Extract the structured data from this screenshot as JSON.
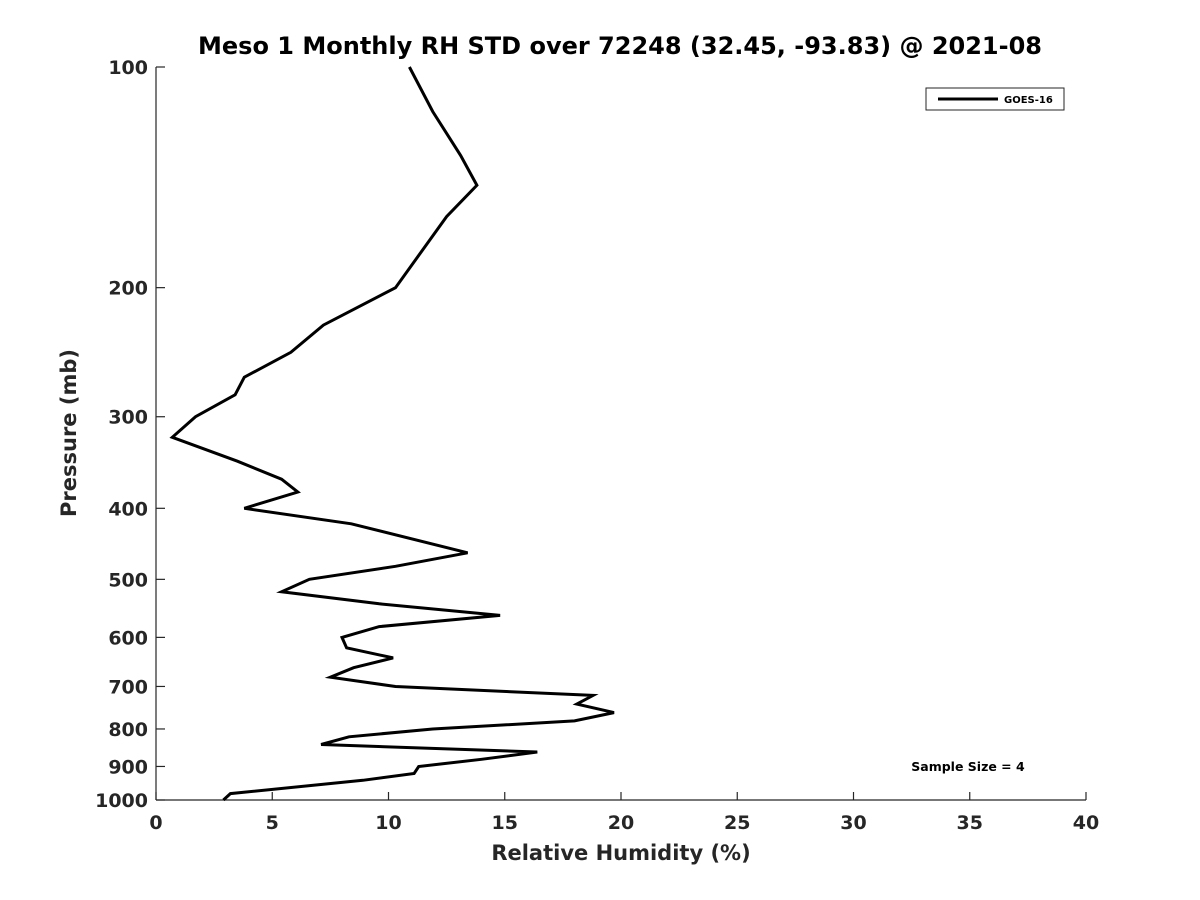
{
  "chart_data": {
    "type": "line",
    "title": "Meso 1 Monthly RH STD over 72248 (32.45, -93.83) @ 2021-08",
    "xlabel": "Relative Humidity (%)",
    "ylabel": "Pressure (mb)",
    "xlim": [
      0,
      40
    ],
    "ylim": [
      100,
      1000
    ],
    "y_scale": "log",
    "y_inverted": true,
    "x_ticks": [
      "0",
      "5",
      "10",
      "15",
      "20",
      "25",
      "30",
      "35",
      "40"
    ],
    "y_ticks": [
      "100",
      "200",
      "300",
      "400",
      "500",
      "600",
      "700",
      "800",
      "900",
      "1000"
    ],
    "grid": false,
    "legend_position": "top-right",
    "series": [
      {
        "name": "GOES-16",
        "color": "#000000",
        "x": [
          10.9,
          11.9,
          13.1,
          13.8,
          12.5,
          10.3,
          7.2,
          5.8,
          3.8,
          3.4,
          1.7,
          0.7,
          3.5,
          5.4,
          6.1,
          3.8,
          8.4,
          13.4,
          10.3,
          6.6,
          5.4,
          9.6,
          14.8,
          9.6,
          8.0,
          8.2,
          10.2,
          8.5,
          7.5,
          10.3,
          18.8,
          18.1,
          19.7,
          18.0,
          11.9,
          8.3,
          7.1,
          16.4,
          14.0,
          11.3,
          11.1,
          8.9,
          3.2,
          2.9
        ],
        "y": [
          100,
          115,
          132,
          145,
          160,
          200,
          225,
          245,
          265,
          280,
          300,
          320,
          345,
          365,
          380,
          400,
          420,
          460,
          480,
          500,
          520,
          540,
          560,
          580,
          600,
          620,
          640,
          660,
          680,
          700,
          720,
          740,
          760,
          780,
          800,
          820,
          840,
          860,
          880,
          900,
          920,
          940,
          980,
          1000
        ]
      }
    ],
    "annotations": [
      {
        "text": "Sample Size = 4",
        "x": 34,
        "y": 900
      }
    ]
  }
}
